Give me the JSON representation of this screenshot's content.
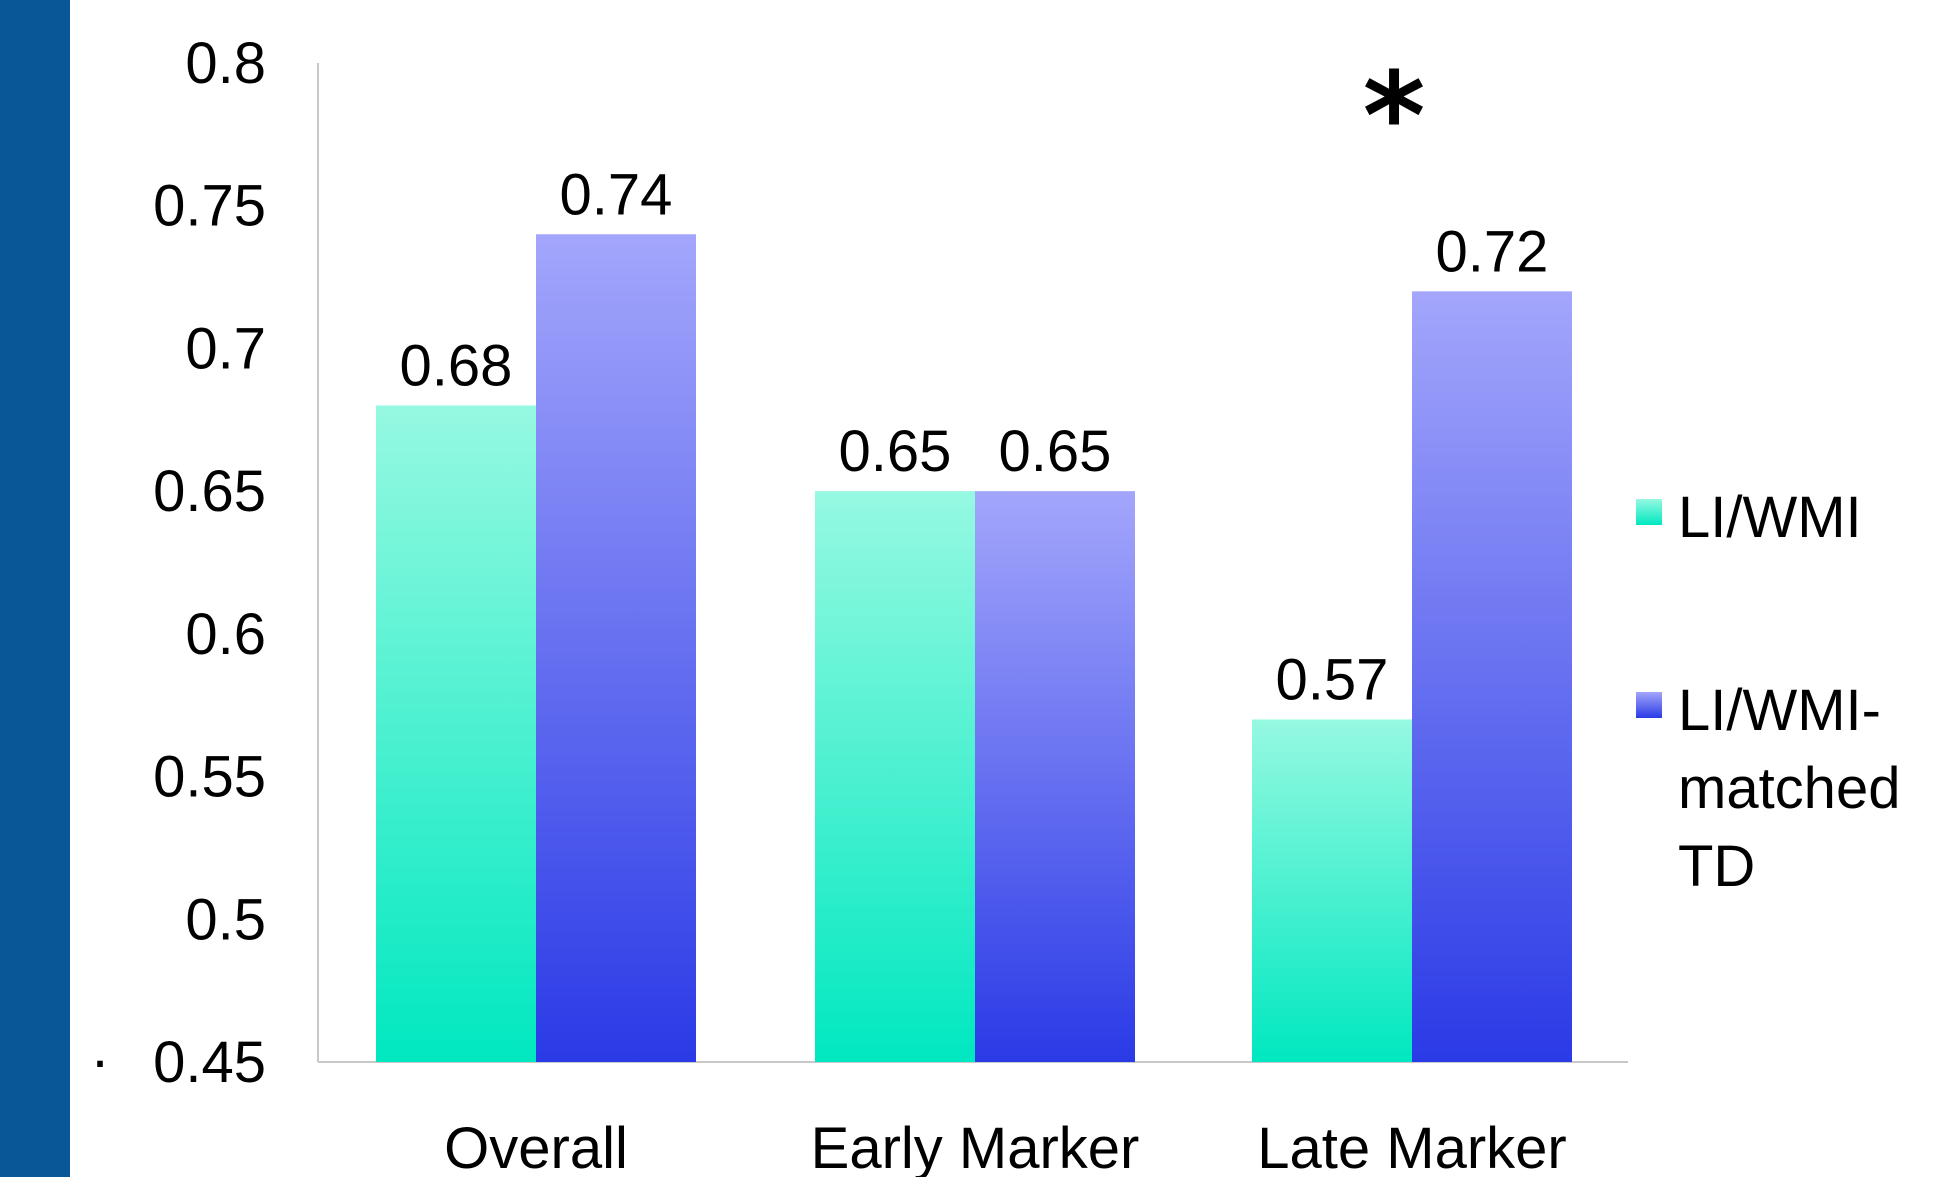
{
  "page": {
    "left_band_color": "#0a5797"
  },
  "chart_data": {
    "type": "bar",
    "categories": [
      "Overall",
      "Early Marker",
      "Late Marker"
    ],
    "series": [
      {
        "name": "LI/WMI",
        "values": [
          0.68,
          0.65,
          0.57
        ],
        "labels": [
          "0.68",
          "0.65",
          "0.57"
        ],
        "color_top": "#96f9e1",
        "color_bottom": "#00e8c0"
      },
      {
        "name": "LI/WMI-matched TD",
        "name_lines": [
          "LI/WMI-",
          "matched",
          "TD"
        ],
        "values": [
          0.74,
          0.65,
          0.72
        ],
        "labels": [
          "0.74",
          "0.65",
          "0.72"
        ],
        "color_top": "#a3a6fb",
        "color_bottom": "#2a3ae6"
      }
    ],
    "ylim": [
      0.45,
      0.8
    ],
    "yticks": [
      0.8,
      0.75,
      0.7,
      0.65,
      0.6,
      0.55,
      0.5,
      0.45
    ],
    "ytick_labels": [
      "0.8",
      "0.75",
      "0.7",
      "0.65",
      "0.6",
      "0.55",
      "0.5",
      "0.45"
    ],
    "annotations": [
      {
        "text": "*",
        "category": "Late Marker"
      }
    ],
    "stray_mark": "·",
    "legend_position": "right",
    "grid": false,
    "title": "",
    "xlabel": "",
    "ylabel": ""
  }
}
